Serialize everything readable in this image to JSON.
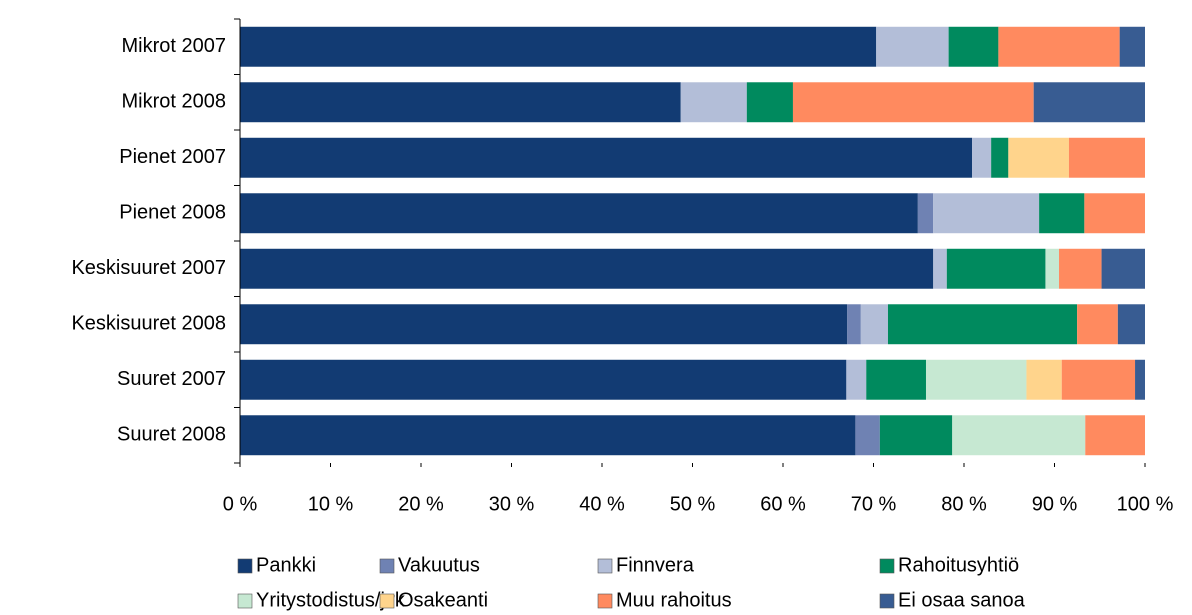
{
  "chart_data": {
    "type": "stacked-bar-horizontal",
    "categories": [
      "Mikrot 2007",
      "Mikrot 2008",
      "Pienet 2007",
      "Pienet 2008",
      "Keskisuuret 2007",
      "Keskisuuret 2008",
      "Suuret 2007",
      "Suuret 2008"
    ],
    "series": [
      {
        "name": "Pankki",
        "color": "#123b73",
        "values": [
          70.3,
          48.7,
          80.9,
          74.9,
          76.6,
          67.1,
          67.0,
          68.0
        ]
      },
      {
        "name": "Vakuutus",
        "color": "#6f82b3",
        "values": [
          0,
          0,
          0,
          1.7,
          0,
          1.5,
          0,
          2.7
        ]
      },
      {
        "name": "Finnvera",
        "color": "#b3bed8",
        "values": [
          8.0,
          7.3,
          2.1,
          11.7,
          1.5,
          3.0,
          2.2,
          0
        ]
      },
      {
        "name": "Rahoitusyhtiö",
        "color": "#008a5e",
        "values": [
          5.5,
          5.1,
          1.9,
          5.0,
          10.9,
          20.9,
          6.6,
          8.0
        ]
      },
      {
        "name": "Yritystodistus/jvk",
        "color": "#c6e8d2",
        "values": [
          0,
          0,
          0,
          0,
          1.5,
          0,
          11.1,
          14.7
        ]
      },
      {
        "name": "Osakeanti",
        "color": "#ffd48c",
        "values": [
          0,
          0,
          6.7,
          0,
          0,
          0,
          3.9,
          0
        ]
      },
      {
        "name": "Muu rahoitus",
        "color": "#ff8a5f",
        "values": [
          13.4,
          26.6,
          8.4,
          6.7,
          4.7,
          4.5,
          8.1,
          6.6
        ]
      },
      {
        "name": "Ei osaa sanoa",
        "color": "#385c92",
        "values": [
          2.8,
          12.3,
          0,
          0,
          4.8,
          3.0,
          1.1,
          0
        ]
      }
    ],
    "xlim": [
      0,
      100
    ],
    "xticks": [
      {
        "value": 0,
        "label": "0 %"
      },
      {
        "value": 10,
        "label": "10 %"
      },
      {
        "value": 20,
        "label": "20 %"
      },
      {
        "value": 30,
        "label": "30 %"
      },
      {
        "value": 40,
        "label": "40 %"
      },
      {
        "value": 50,
        "label": "50 %"
      },
      {
        "value": 60,
        "label": "60 %"
      },
      {
        "value": 70,
        "label": "70 %"
      },
      {
        "value": 80,
        "label": "80 %"
      },
      {
        "value": 90,
        "label": "90 %"
      },
      {
        "value": 100,
        "label": "100 %"
      }
    ],
    "grid": false,
    "legend": "bottom"
  }
}
